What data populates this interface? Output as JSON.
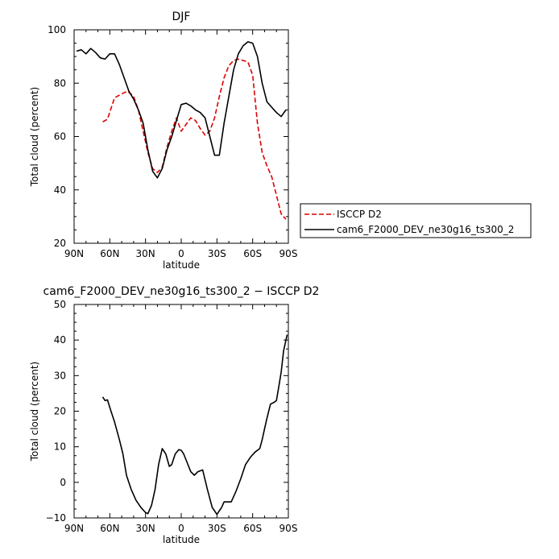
{
  "chart_data": [
    {
      "type": "line",
      "title": "DJF",
      "xlabel": "latitude",
      "ylabel": "Total cloud (percent)",
      "xlim": [
        90,
        -90
      ],
      "ylim": [
        20,
        100
      ],
      "xticks": [
        90,
        60,
        30,
        0,
        -30,
        -60,
        -90
      ],
      "xtick_labels": [
        "90N",
        "60N",
        "30N",
        "0",
        "30S",
        "60S",
        "90S"
      ],
      "yticks": [
        20,
        40,
        60,
        80,
        100
      ],
      "ytick_labels": [
        "20",
        "40",
        "60",
        "80",
        "100"
      ],
      "legend_position": "right",
      "series": [
        {
          "name": "ISCCP D2",
          "color": "#dd0000",
          "style": "dashed",
          "x": [
            66,
            62,
            56,
            50,
            45,
            40,
            36,
            32,
            28,
            24,
            20,
            16,
            12,
            8,
            4,
            0,
            -4,
            -8,
            -12,
            -16,
            -20,
            -24,
            -28,
            -32,
            -36,
            -40,
            -44,
            -48,
            -52,
            -56,
            -60,
            -64,
            -68,
            -72,
            -76,
            -80,
            -84,
            -88
          ],
          "y": [
            65.5,
            66.5,
            74.5,
            76,
            77,
            75,
            70,
            62,
            54,
            48,
            46.5,
            48.5,
            56,
            62,
            67,
            62,
            64.5,
            67,
            66,
            63,
            60.5,
            62,
            67,
            75,
            82,
            86.5,
            88.5,
            89,
            88.5,
            88,
            83,
            65,
            54,
            49,
            45,
            38,
            31,
            29
          ]
        },
        {
          "name": "cam6_F2000_DEV_ne30g16_ts300_2",
          "color": "#000000",
          "style": "solid",
          "x": [
            88,
            84,
            80,
            76,
            72,
            68,
            64,
            60,
            56,
            52,
            48,
            44,
            40,
            36,
            32,
            28,
            24,
            20,
            16,
            12,
            8,
            4,
            0,
            -4,
            -8,
            -12,
            -16,
            -20,
            -24,
            -28,
            -32,
            -36,
            -40,
            -44,
            -48,
            -52,
            -56,
            -60,
            -64,
            -68,
            -72,
            -76,
            -80,
            -84,
            -88
          ],
          "y": [
            92,
            92.5,
            91,
            93,
            91.5,
            89.5,
            89,
            91,
            91,
            87,
            82,
            77,
            74,
            70,
            65,
            55,
            47,
            44.5,
            48,
            55,
            60,
            66,
            72,
            72.5,
            71.5,
            70,
            69,
            67,
            60,
            53,
            53,
            65,
            75,
            85,
            91,
            94,
            95.5,
            95,
            90,
            80,
            73,
            71,
            69,
            67.5,
            70
          ]
        }
      ]
    },
    {
      "type": "line",
      "title": "cam6_F2000_DEV_ne30g16_ts300_2 − ISCCP D2",
      "xlabel": "latitude",
      "ylabel": "Total cloud (percent)",
      "xlim": [
        90,
        -90
      ],
      "ylim": [
        -10,
        50
      ],
      "xticks": [
        90,
        60,
        30,
        0,
        -30,
        -60,
        -90
      ],
      "xtick_labels": [
        "90N",
        "60N",
        "30N",
        "0",
        "30S",
        "60S",
        "90S"
      ],
      "yticks": [
        -10,
        0,
        10,
        20,
        30,
        40,
        50
      ],
      "ytick_labels": [
        "−10",
        "0",
        "10",
        "20",
        "30",
        "40",
        "50"
      ],
      "series": [
        {
          "color": "#000000",
          "style": "solid",
          "x": [
            66,
            64,
            62,
            59,
            56,
            52,
            49,
            46,
            42,
            38,
            34,
            30,
            28,
            25,
            22,
            19,
            16,
            13,
            10,
            8,
            5,
            2,
            0,
            -2,
            -5,
            -8,
            -11,
            -14,
            -18,
            -22,
            -26,
            -30,
            -34,
            -36,
            -38,
            -42,
            -46,
            -50,
            -54,
            -58,
            -62,
            -66,
            -68,
            -70,
            -72,
            -75,
            -78,
            -80,
            -82,
            -84,
            -86,
            -88,
            -89
          ],
          "y": [
            24,
            23,
            23.2,
            20,
            17,
            12,
            8,
            2,
            -2,
            -5,
            -7,
            -8.5,
            -8.8,
            -6.5,
            -2,
            5,
            9.5,
            8,
            4.5,
            5,
            8,
            9.2,
            9,
            8,
            5.5,
            3,
            2,
            3,
            3.5,
            -2,
            -7,
            -9,
            -7,
            -5.5,
            -5.5,
            -5.5,
            -2.5,
            1,
            5,
            7,
            8.5,
            9.5,
            12,
            15,
            18,
            22,
            22.5,
            23,
            27,
            31,
            37,
            40,
            41.5
          ]
        }
      ]
    }
  ]
}
